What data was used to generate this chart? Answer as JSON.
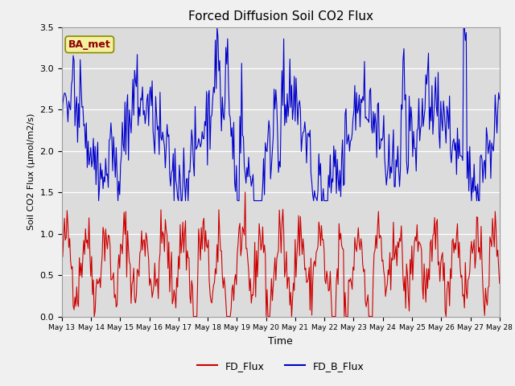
{
  "title": "Forced Diffusion Soil CO2 Flux",
  "xlabel": "Time",
  "ylabel": "Soil CO2 Flux (μmol/m2/s)",
  "ylim": [
    0.0,
    3.5
  ],
  "annotation": "BA_met",
  "fd_color": "#cc0000",
  "fdb_color": "#0000cc",
  "fig_facecolor": "#f0f0f0",
  "plot_bg_color": "#dcdcdc",
  "legend_labels": [
    "FD_Flux",
    "FD_B_Flux"
  ],
  "x_tick_labels": [
    "May 13",
    "May 14",
    "May 15",
    "May 16",
    "May 17",
    "May 18",
    "May 19",
    "May 20",
    "May 21",
    "May 22",
    "May 23",
    "May 24",
    "May 25",
    "May 26",
    "May 27",
    "May 28"
  ],
  "n_points": 500,
  "seed": 42
}
